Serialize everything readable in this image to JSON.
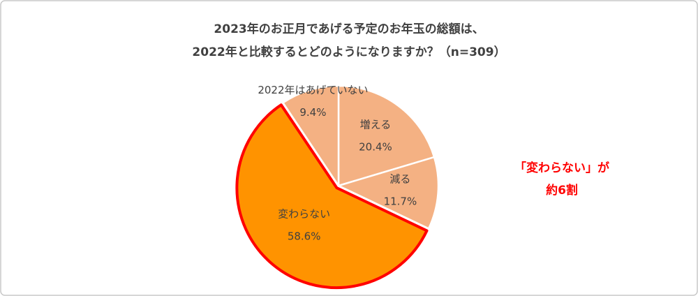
{
  "chart_data": {
    "type": "pie",
    "title": [
      "2023年のお正月であげる予定のお年玉の総額は、",
      "2022年と比較するとどのようになりますか？（n=309）"
    ],
    "categories": [
      "増える",
      "減る",
      "変わらない",
      "2022年はあげていない"
    ],
    "values": [
      20.4,
      11.7,
      58.6,
      9.4
    ],
    "value_labels": [
      "20.4%",
      "11.7%",
      "58.6%",
      "9.4%"
    ],
    "colors": [
      "#F4B183",
      "#F4B183",
      "#FF9300",
      "#F4B183"
    ],
    "highlight_index": 2,
    "highlight_color": "#FF0000",
    "annotation": [
      "「変わらない」が",
      "約6割"
    ]
  }
}
